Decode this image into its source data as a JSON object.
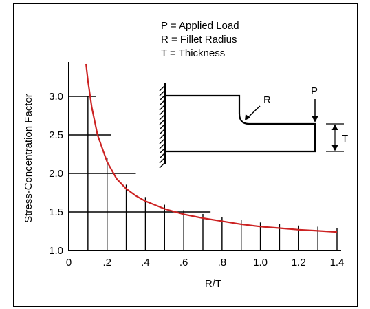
{
  "chart_data": {
    "type": "line",
    "ylabel": "Stress-Concentration Factor",
    "xlabel": "R/T",
    "xlim": [
      0,
      1.4
    ],
    "ylim": [
      1.0,
      3.5
    ],
    "x_ticks": [
      {
        "value": 0,
        "label": "0"
      },
      {
        "value": 0.2,
        "label": ".2"
      },
      {
        "value": 0.4,
        "label": ".4"
      },
      {
        "value": 0.6,
        "label": ".6"
      },
      {
        "value": 0.8,
        "label": ".8"
      },
      {
        "value": 1.0,
        "label": "1.0"
      },
      {
        "value": 1.2,
        "label": "1.2"
      },
      {
        "value": 1.4,
        "label": "1.4"
      }
    ],
    "y_ticks": [
      {
        "value": 1.0,
        "label": "1.0"
      },
      {
        "value": 1.5,
        "label": "1.5"
      },
      {
        "value": 2.0,
        "label": "2.0"
      },
      {
        "value": 2.5,
        "label": "2.5"
      },
      {
        "value": 3.0,
        "label": "3.0"
      }
    ],
    "series": [
      {
        "color": "#cc2222",
        "x": [
          0.09,
          0.1,
          0.12,
          0.15,
          0.2,
          0.25,
          0.3,
          0.35,
          0.4,
          0.5,
          0.6,
          0.7,
          0.8,
          0.9,
          1.0,
          1.1,
          1.2,
          1.3,
          1.4
        ],
        "y": [
          3.42,
          3.2,
          2.86,
          2.5,
          2.15,
          1.93,
          1.8,
          1.71,
          1.64,
          1.54,
          1.47,
          1.42,
          1.38,
          1.34,
          1.31,
          1.29,
          1.27,
          1.255,
          1.24
        ]
      }
    ],
    "grid": "partial vertical lines at every 0.1 of R/T up to the curve; horizontal lines at 2.0, 2.5, 3.0 and 1.5",
    "legend": {
      "position": "top-center",
      "entries": [
        "P = Applied Load",
        "R = Fillet Radius",
        "T = Thickness"
      ]
    },
    "annotations": {
      "diagram": "stepped cantilever bar fixed to a hatched wall, fillet radius at the step, load at free end",
      "radius_label": "R",
      "load_label": "P",
      "thickness_label": "T"
    }
  }
}
